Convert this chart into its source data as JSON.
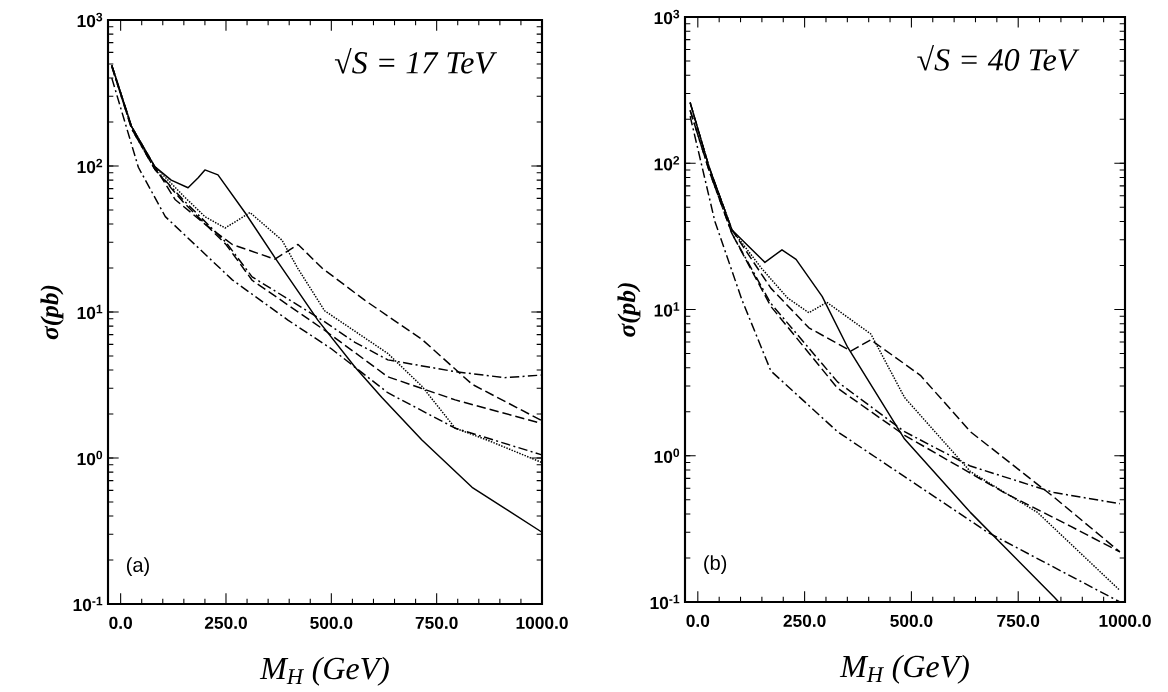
{
  "chart_data": [
    {
      "type": "line",
      "xlabel": "M$_{H}$  (GeV)",
      "ylabel": "σ(pb)",
      "annotations": [
        "√S = 17  TeV",
        "(a)"
      ],
      "log": "y",
      "xlim": [
        -30,
        1000
      ],
      "ylim": [
        0.1,
        1000
      ],
      "xticks": [
        {
          "value": 0,
          "label": "0.0"
        },
        {
          "value": 250,
          "label": "250.0"
        },
        {
          "value": 500,
          "label": "500.0"
        },
        {
          "value": 750,
          "label": "750.0"
        },
        {
          "value": 1000,
          "label": "1000.0"
        }
      ],
      "yticks": [
        {
          "value": 0.1,
          "label": "10$^{-1}$"
        },
        {
          "value": 1,
          "label": "10$^{0}$"
        },
        {
          "value": 10,
          "label": "10$^{1}$"
        },
        {
          "value": 100,
          "label": "10$^{2}$"
        },
        {
          "value": 1000,
          "label": "10$^{3}$"
        }
      ],
      "series": [
        {
          "color": "#000000",
          "line_style": "solid",
          "x": [
            -21,
            26,
            81,
            120,
            160,
            184,
            200,
            231,
            295,
            366,
            468,
            556,
            620,
            715,
            834,
            1000
          ],
          "values": [
            490,
            186,
            99,
            80,
            71,
            83,
            94,
            87,
            48,
            23.6,
            8.8,
            4.2,
            2.6,
            1.33,
            0.63,
            0.31
          ]
        },
        {
          "color": "#000000",
          "line_style": "dotted",
          "x": [
            -21,
            26,
            81,
            150,
            200,
            248,
            307,
            383,
            420,
            484,
            634,
            715,
            794,
            872,
            1000
          ],
          "values": [
            490,
            186,
            99,
            62,
            45,
            37.6,
            48,
            31,
            20,
            10.2,
            5.2,
            3.1,
            1.6,
            1.32,
            0.93
          ]
        },
        {
          "color": "#000000",
          "line_style": "dashed",
          "x": [
            -21,
            26,
            81,
            129,
            200,
            265,
            366,
            421,
            478,
            580,
            715,
            834,
            1000
          ],
          "values": [
            490,
            186,
            99,
            59,
            40,
            29,
            23,
            29,
            20,
            12,
            6.5,
            3.2,
            1.8
          ]
        },
        {
          "color": "#000000",
          "line_style": "dashdot",
          "x": [
            -21,
            26,
            81,
            150,
            250,
            312,
            478,
            556,
            634,
            794,
            912,
            1000
          ],
          "values": [
            480,
            180,
            95,
            58,
            30,
            17.4,
            8.8,
            6.2,
            4.7,
            3.9,
            3.55,
            3.7
          ]
        },
        {
          "color": "#000000",
          "line_style": "dashed",
          "x": [
            -21,
            26,
            81,
            150,
            250,
            312,
            484,
            634,
            794,
            1000
          ],
          "values": [
            480,
            180,
            95,
            56,
            29,
            16.5,
            7.5,
            3.6,
            2.5,
            1.72
          ]
        },
        {
          "color": "#000000",
          "line_style": "dashdot",
          "x": [
            -21,
            42,
            106,
            265,
            397,
            500,
            634,
            794,
            1000
          ],
          "values": [
            400,
            98,
            45,
            16.6,
            8.8,
            5.6,
            2.8,
            1.6,
            1.05
          ]
        }
      ]
    },
    {
      "type": "line",
      "xlabel": "M$_{H}$  (GeV)",
      "ylabel": "σ(pb)",
      "annotations": [
        "√S = 40  TeV",
        "(b)"
      ],
      "log": "y",
      "xlim": [
        -30,
        1000
      ],
      "ylim": [
        0.1,
        1000
      ],
      "xticks": [
        {
          "value": 0,
          "label": "0.0"
        },
        {
          "value": 250,
          "label": "250.0"
        },
        {
          "value": 500,
          "label": "500.0"
        },
        {
          "value": 750,
          "label": "750.0"
        },
        {
          "value": 1000,
          "label": "1000.0"
        }
      ],
      "yticks": [
        {
          "value": 0.1,
          "label": "10$^{-1}$"
        },
        {
          "value": 1,
          "label": "10$^{0}$"
        },
        {
          "value": 10,
          "label": "10$^{1}$"
        },
        {
          "value": 100,
          "label": "10$^{2}$"
        },
        {
          "value": 1000,
          "label": "10$^{3}$"
        }
      ],
      "series": [
        {
          "color": "#000000",
          "line_style": "solid",
          "x": [
            -18,
            27,
            80,
            157,
            197,
            230,
            291,
            351,
            484,
            638,
            834,
            845
          ],
          "values": [
            260,
            93,
            35,
            21,
            25.6,
            22,
            12.3,
            5.5,
            1.3,
            0.41,
            0.108,
            0.1
          ]
        },
        {
          "color": "#000000",
          "line_style": "dotted",
          "x": [
            -18,
            27,
            80,
            150,
            210,
            260,
            302,
            405,
            484,
            638,
            795,
            988
          ],
          "values": [
            260,
            93,
            35,
            19,
            12,
            9.5,
            11.2,
            6.8,
            2.5,
            0.78,
            0.41,
            0.12
          ]
        },
        {
          "color": "#000000",
          "line_style": "dashed",
          "x": [
            -18,
            27,
            80,
            171,
            260,
            358,
            405,
            521,
            638,
            834,
            988
          ],
          "values": [
            260,
            93,
            35,
            14,
            7.5,
            5.2,
            6.2,
            3.55,
            1.46,
            0.52,
            0.22
          ]
        },
        {
          "color": "#000000",
          "line_style": "dashdot",
          "x": [
            -18,
            27,
            80,
            171,
            327,
            484,
            638,
            834,
            988
          ],
          "values": [
            230,
            88,
            33,
            11,
            3.2,
            1.46,
            0.85,
            0.56,
            0.47
          ]
        },
        {
          "color": "#000000",
          "line_style": "dashed",
          "x": [
            -18,
            27,
            80,
            171,
            327,
            484,
            717,
            872,
            988
          ],
          "values": [
            230,
            88,
            33,
            10.5,
            2.9,
            1.38,
            0.56,
            0.33,
            0.22
          ]
        },
        {
          "color": "#000000",
          "line_style": "dashdot",
          "x": [
            -18,
            40,
            103,
            171,
            327,
            484,
            678,
            988
          ],
          "values": [
            210,
            40,
            11.7,
            3.8,
            1.46,
            0.72,
            0.3,
            0.1
          ]
        }
      ]
    }
  ]
}
